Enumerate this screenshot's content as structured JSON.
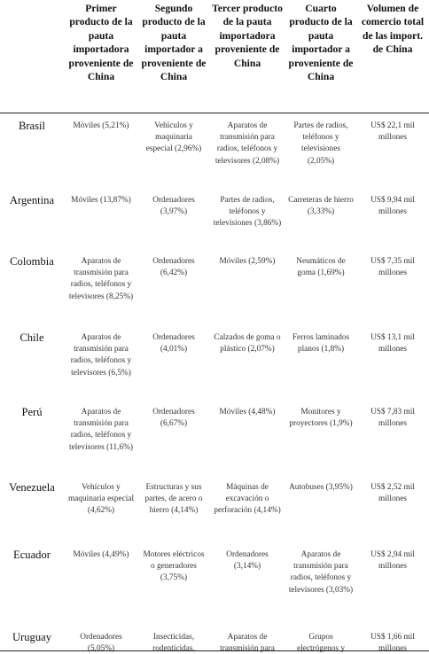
{
  "headers": [
    "",
    "Primer producto de la pauta importadora proveniente de China",
    "Segundo producto de la pauta importador a proveniente de China",
    "Tercer producto de la pauta importadora proveniente de China",
    "Cuarto producto de la pauta importador a proveniente de China",
    "Volumen de comercio total de las import. de China"
  ],
  "rows": [
    {
      "country": "Brasil",
      "p1": "Móviles (5,21%)",
      "p2": "Vehículos y maquinaria especial (2,96%)",
      "p3": "Aparatos de transmisión para radios, teléfonos y televisores (2,08%)",
      "p4": "Partes de radios, teléfonos y televisiones (2,05%)",
      "vol": "US$ 22,1 mil millones"
    },
    {
      "country": "Argentina",
      "p1": "Móviles (13,87%)",
      "p2": "Ordenadores (3,97%)",
      "p3": "Partes de radios, teléfonos y televisiones (3,86%)",
      "p4": "Carreteras de hierro (3,33%)",
      "vol": "US$ 9,94 mil millones"
    },
    {
      "country": "Colombia",
      "p1": "Aparatos de transmisión para radios, teléfonos y televisores (8,25%)",
      "p2": "Ordenadores (6,42%)",
      "p3": "Móviles (2,59%)",
      "p4": "Neumáticos de goma (1,69%)",
      "vol": "US$ 7,35 mil millones"
    },
    {
      "country": "Chile",
      "p1": "Aparatos de transmisión para radios, teléfonos y televisores (6,5%)",
      "p2": "Ordenadores (4,01%)",
      "p3": "Calzados de goma o plástico (2,07%)",
      "p4": "Ferros laminados planos (1,8%)",
      "vol": "US$ 13,1 mil millones"
    },
    {
      "country": "Perú",
      "p1": "Aparatos de transmisión para radios, teléfonos y televisores (11,6%)",
      "p2": "Ordenadores (6,67%)",
      "p3": "Móviles (4,48%)",
      "p4": "Monitores y proyectores (1,9%)",
      "vol": "US$ 7,83 mil millones"
    },
    {
      "country": "Venezuela",
      "p1": "Vehículos y maquinaria especial (4,62%)",
      "p2": "Estructuras y sus partes, de acero o hierro (4,14%)",
      "p3": "Máquinas de excavación o perforación (4,14%)",
      "p4": "Autobuses (3,95%)",
      "vol": "US$ 2,52 mil millones"
    },
    {
      "country": "Ecuador",
      "p1": "Móviles (4,49%)",
      "p2": "Motores eléctricos o generadores (3,75%)",
      "p3": "Ordenadores (3,14%)",
      "p4": "Aparatos de transmisión para radios, teléfonos y televisores (3,03%)",
      "vol": "US$ 2,94 mil millones"
    },
    {
      "country": "Uruguay",
      "p1": "Ordenadores (5,05%)",
      "p2": "Insecticidas, rodenticidas,",
      "p3": "Aparatos de transmisión para radios, teléfonos y",
      "p4": "Grupos electrógenos y convertidores",
      "vol": "US$ 1,66 mil millones"
    }
  ]
}
